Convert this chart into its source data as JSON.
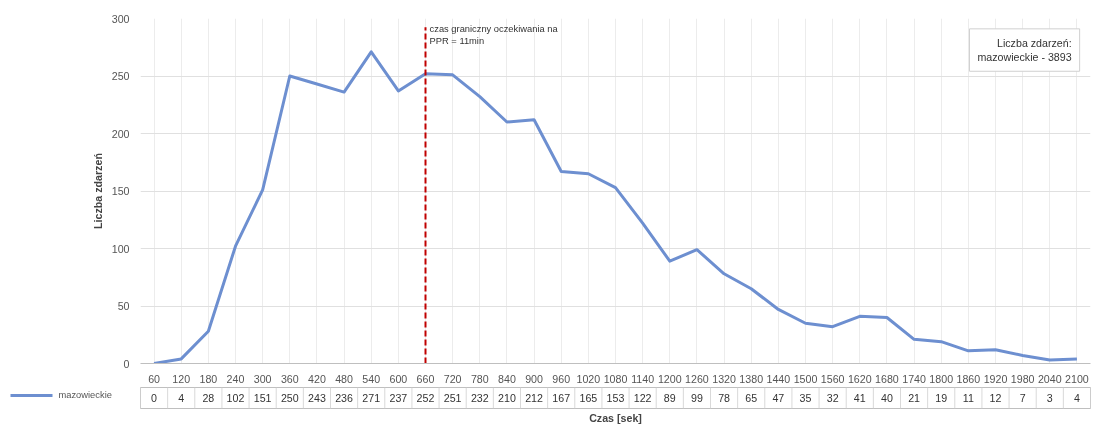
{
  "chart_data": {
    "type": "line",
    "xlabel": "Czas [sek]",
    "ylabel": "Liczba zdarzeń",
    "categories": [
      "60",
      "120",
      "180",
      "240",
      "300",
      "360",
      "420",
      "480",
      "540",
      "600",
      "660",
      "720",
      "780",
      "840",
      "900",
      "960",
      "1020",
      "1080",
      "1140",
      "1200",
      "1260",
      "1320",
      "1380",
      "1440",
      "1500",
      "1560",
      "1620",
      "1680",
      "1740",
      "1800",
      "1860",
      "1920",
      "1980",
      "2040",
      "2100"
    ],
    "series": [
      {
        "name": "mazowieckie",
        "color": "#6d8fd0",
        "values": [
          0,
          4,
          28,
          102,
          151,
          250,
          243,
          236,
          271,
          237,
          252,
          251,
          232,
          210,
          212,
          167,
          165,
          153,
          122,
          89,
          99,
          78,
          65,
          47,
          35,
          32,
          41,
          40,
          21,
          19,
          11,
          12,
          7,
          3,
          4
        ]
      }
    ],
    "ylim": [
      0,
      300
    ],
    "yticks": [
      0,
      50,
      100,
      150,
      200,
      250,
      300
    ],
    "grid": true,
    "legend": "bottom",
    "data_labels": true,
    "marker": "none",
    "line_style": "solid",
    "ref_lines": [
      {
        "axis": "x",
        "value": "660",
        "label": "czas graniczny oczekiwania na\nPPR = 11min",
        "color": "#c00000",
        "line_style": "dashed"
      }
    ],
    "annotations": [
      "Liczba zdarzeń:\nmazowieckie - 3893"
    ]
  }
}
